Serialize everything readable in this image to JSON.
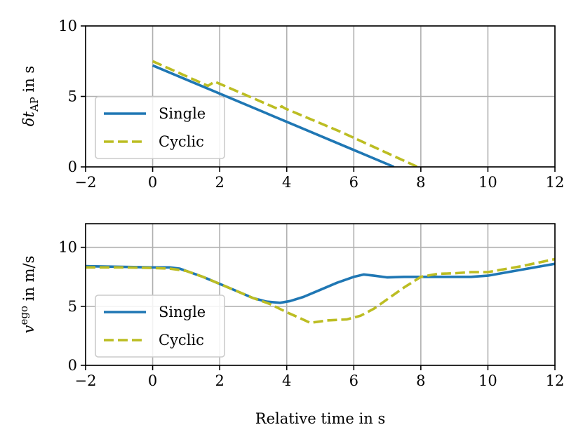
{
  "chart_data": [
    {
      "type": "line",
      "xlim": [
        -2,
        12
      ],
      "ylim": [
        0,
        10
      ],
      "xticks": [
        -2,
        0,
        2,
        4,
        6,
        8,
        10,
        12
      ],
      "yticks": [
        0,
        5,
        10
      ],
      "xtick_labels": [
        "−2",
        "0",
        "2",
        "4",
        "6",
        "8",
        "10",
        "12"
      ],
      "ytick_labels": [
        "0",
        "5",
        "10"
      ],
      "ylabel": {
        "base": "δt",
        "sub": "AP",
        "suffix": " in s"
      },
      "xlabel": "",
      "grid": true,
      "legend": "lower-left",
      "series": [
        {
          "name": "Single",
          "color": "#1f77b4",
          "style": "solid",
          "x": [
            0,
            7.2
          ],
          "y": [
            7.2,
            0
          ]
        },
        {
          "name": "Cyclic",
          "color": "#bcbd22",
          "style": "dashed",
          "x": [
            0,
            1.65,
            1.85,
            3.75,
            3.85,
            3.95,
            5.6,
            7.9
          ],
          "y": [
            7.5,
            5.75,
            6.05,
            4.1,
            4.3,
            4.15,
            2.5,
            0
          ]
        }
      ]
    },
    {
      "type": "line",
      "xlim": [
        -2,
        12
      ],
      "ylim": [
        0,
        12
      ],
      "xticks": [
        -2,
        0,
        2,
        4,
        6,
        8,
        10,
        12
      ],
      "yticks": [
        0,
        5,
        10
      ],
      "xtick_labels": [
        "−2",
        "0",
        "2",
        "4",
        "6",
        "8",
        "10",
        "12"
      ],
      "ytick_labels": [
        "0",
        "5",
        "10"
      ],
      "ylabel": {
        "base": "v",
        "sup": "ego",
        "suffix": " in m/s"
      },
      "xlabel": "Relative time in s",
      "grid": true,
      "legend": "lower-left",
      "series": [
        {
          "name": "Single",
          "color": "#1f77b4",
          "style": "solid",
          "x": [
            -2,
            -1,
            0,
            0.5,
            0.8,
            1,
            1.5,
            2,
            2.5,
            3,
            3.4,
            3.8,
            4.1,
            4.5,
            5,
            5.5,
            6,
            6.3,
            6.6,
            7,
            7.5,
            8,
            8.5,
            9,
            9.5,
            10,
            11,
            12
          ],
          "y": [
            8.4,
            8.35,
            8.3,
            8.3,
            8.2,
            8.0,
            7.5,
            6.9,
            6.3,
            5.7,
            5.4,
            5.3,
            5.45,
            5.8,
            6.4,
            7.0,
            7.5,
            7.7,
            7.6,
            7.45,
            7.5,
            7.5,
            7.5,
            7.5,
            7.5,
            7.6,
            8.1,
            8.6
          ]
        },
        {
          "name": "Cyclic",
          "color": "#bcbd22",
          "style": "dashed",
          "x": [
            -2,
            -1,
            0,
            0.5,
            1,
            1.5,
            2,
            2.5,
            3,
            3.5,
            4,
            4.4,
            4.7,
            5.2,
            5.8,
            6.2,
            6.6,
            7,
            7.5,
            8,
            8.5,
            9,
            9.5,
            10,
            11,
            12
          ],
          "y": [
            8.3,
            8.3,
            8.25,
            8.2,
            8.0,
            7.5,
            6.9,
            6.3,
            5.7,
            5.2,
            4.5,
            4.0,
            3.6,
            3.8,
            3.9,
            4.2,
            4.8,
            5.6,
            6.6,
            7.5,
            7.75,
            7.8,
            7.9,
            7.9,
            8.4,
            9.0
          ]
        }
      ]
    }
  ]
}
